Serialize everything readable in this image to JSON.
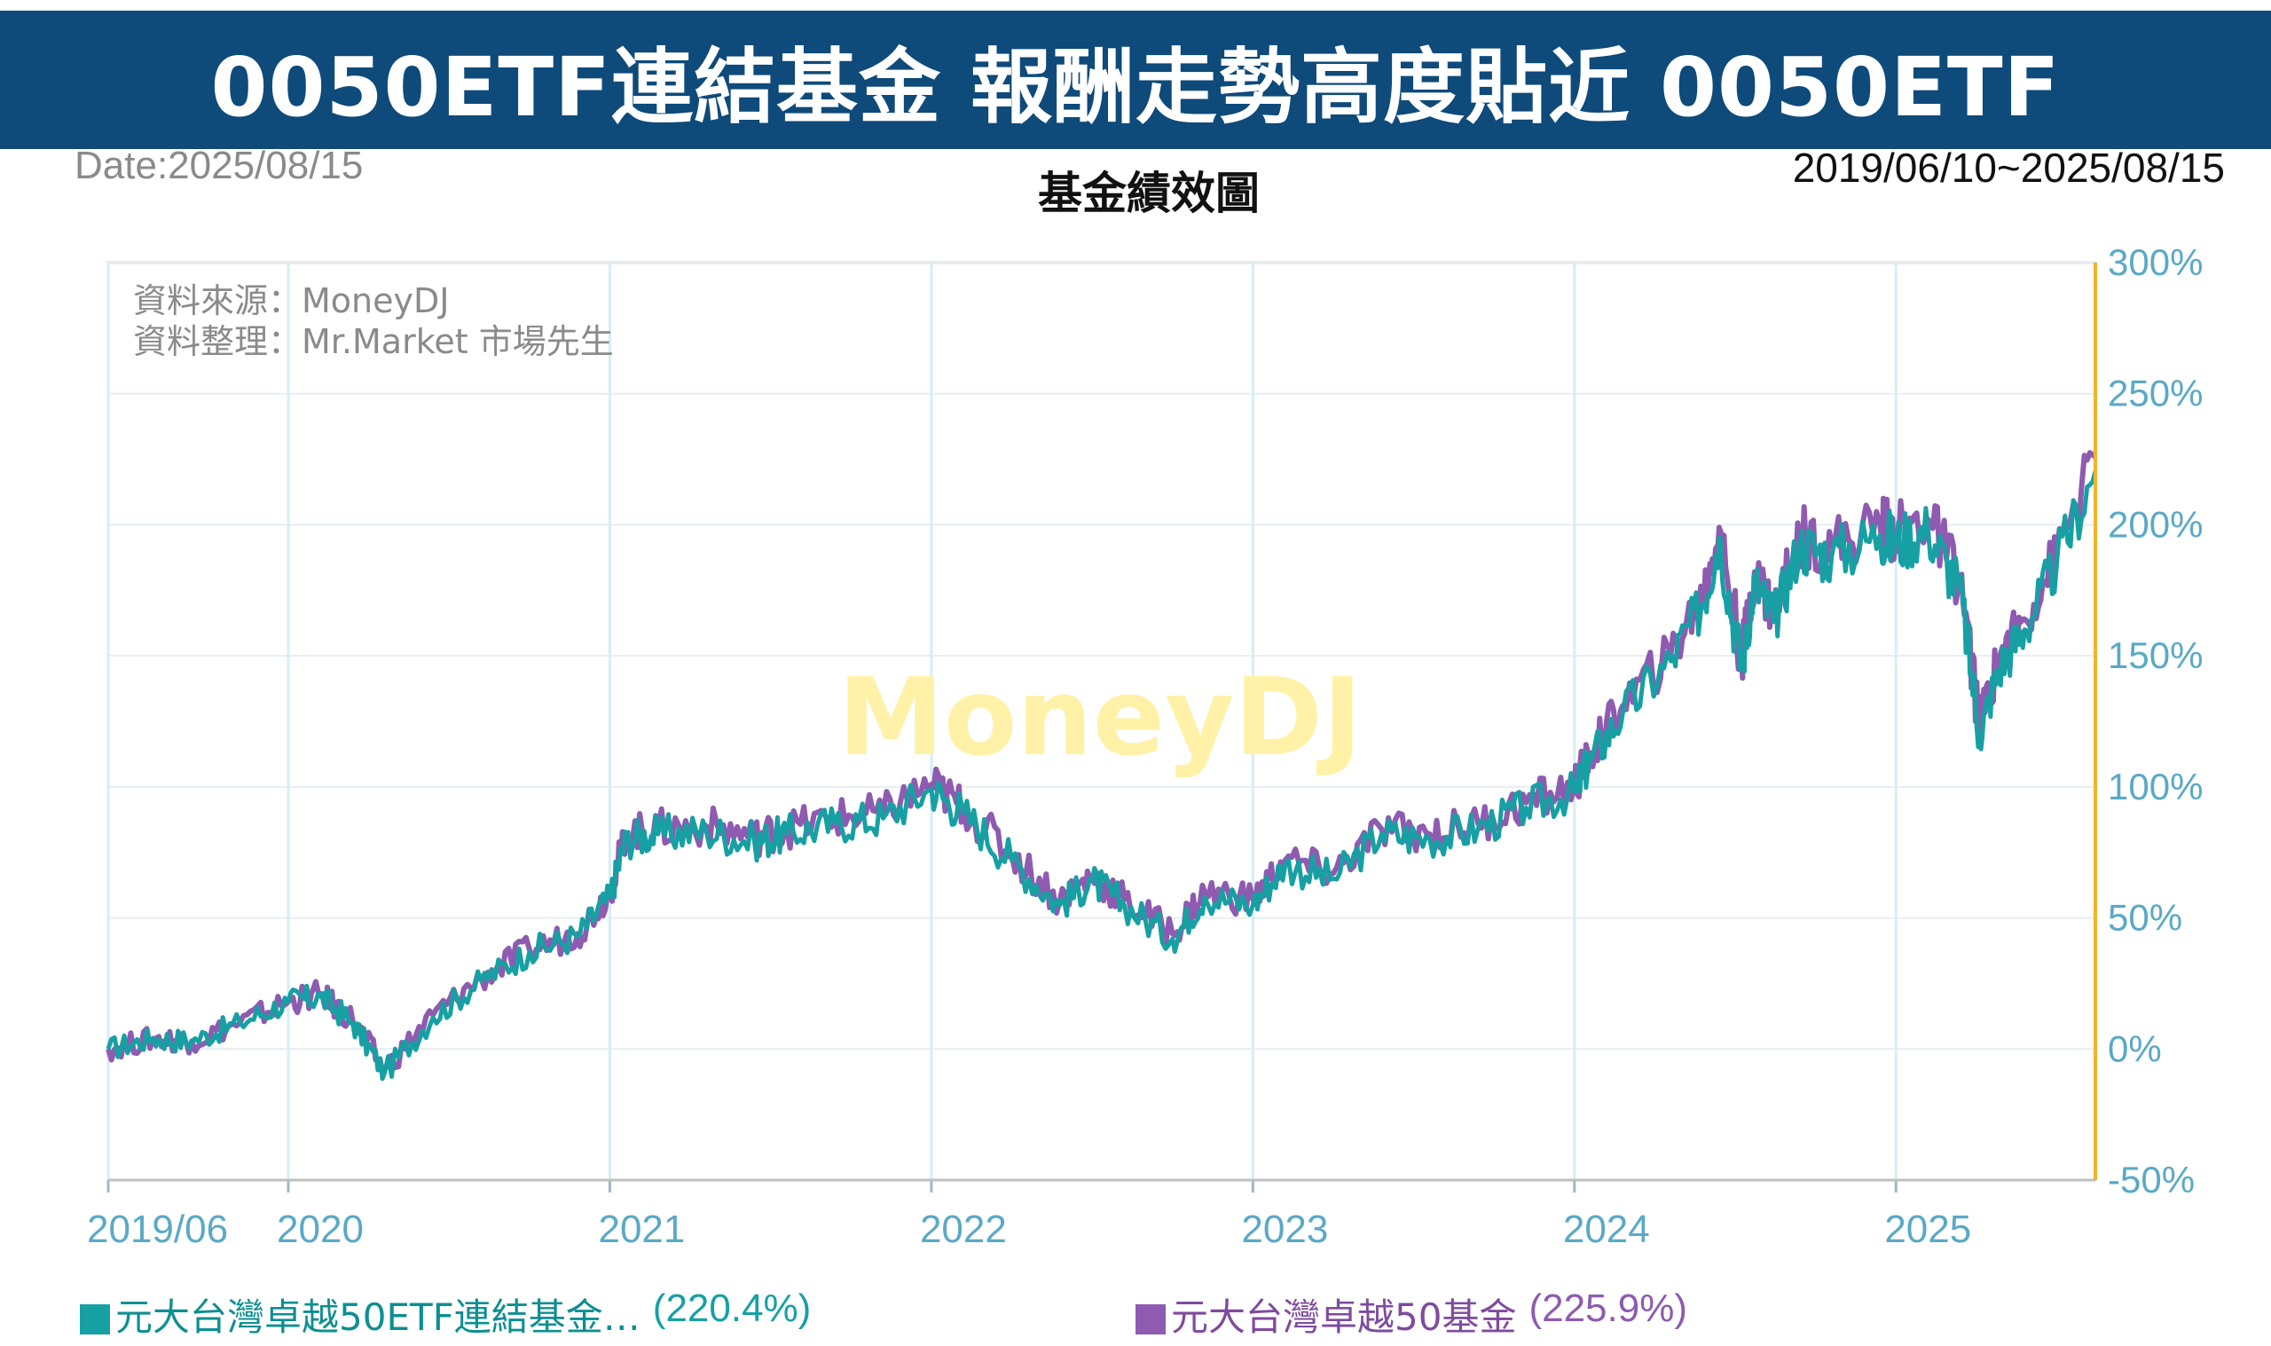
{
  "banner": {
    "title": "0050ETF連結基金 報酬走勢高度貼近 0050ETF"
  },
  "header": {
    "date_label": "Date:2025/08/15",
    "chart_title": "基金績效圖",
    "range_label": "2019/06/10~2025/08/15"
  },
  "annotations": {
    "source_line": "資料來源：MoneyDJ",
    "compiler_line": "資料整理：Mr.Market 市場先生",
    "watermark": "MoneyDJ"
  },
  "colors": {
    "banner": "#0e4a7a",
    "series1": "#17a0a3",
    "series2": "#8e5bb0",
    "axis_right": "#f0b429",
    "grid": "#dcecf2",
    "tick_label": "#5aa9c6"
  },
  "legend": [
    {
      "name": "元大台灣卓越50ETF連結基金…",
      "value": "(220.4%)",
      "swatch": "#17a0a3"
    },
    {
      "name": "元大台灣卓越50基金",
      "value": "(225.9%)",
      "swatch": "#8e5bb0"
    }
  ],
  "chart_data": {
    "type": "line",
    "title": "基金績效圖",
    "ylim": [
      -50,
      300
    ],
    "yticks": [
      300,
      250,
      200,
      150,
      100,
      50,
      0,
      -50
    ],
    "ytick_labels": [
      "300%",
      "250%",
      "200%",
      "150%",
      "100%",
      "50%",
      "0%",
      "-50%"
    ],
    "xlim": [
      2019.44,
      2025.62
    ],
    "xticks": [
      2019.44,
      2020.0,
      2021.0,
      2022.0,
      2023.0,
      2024.0,
      2025.0
    ],
    "xtick_labels": [
      "2019/06",
      "2020",
      "2021",
      "2022",
      "2023",
      "2024",
      "2025"
    ],
    "grid": true,
    "legend_position": "bottom",
    "series": [
      {
        "name": "元大台灣卓越50ETF連結基金…",
        "final_label": "(220.4%)",
        "x": [
          2019.44,
          2019.58,
          2019.7,
          2019.85,
          2020.0,
          2020.1,
          2020.2,
          2020.3,
          2020.45,
          2020.6,
          2020.75,
          2020.9,
          2021.0,
          2021.05,
          2021.15,
          2021.3,
          2021.45,
          2021.55,
          2021.7,
          2021.85,
          2022.0,
          2022.1,
          2022.25,
          2022.4,
          2022.5,
          2022.6,
          2022.75,
          2022.85,
          2023.0,
          2023.1,
          2023.25,
          2023.4,
          2023.55,
          2023.7,
          2023.85,
          2024.0,
          2024.05,
          2024.15,
          2024.3,
          2024.4,
          2024.45,
          2024.52,
          2024.56,
          2024.62,
          2024.7,
          2024.8,
          2024.95,
          2025.0,
          2025.1,
          2025.2,
          2025.26,
          2025.32,
          2025.4,
          2025.5,
          2025.62
        ],
        "y": [
          0,
          4,
          3,
          10,
          18,
          20,
          10,
          -9,
          12,
          26,
          37,
          43,
          58,
          80,
          82,
          83,
          79,
          82,
          86,
          88,
          99,
          90,
          72,
          55,
          64,
          55,
          42,
          58,
          55,
          70,
          65,
          82,
          80,
          84,
          92,
          98,
          110,
          128,
          148,
          170,
          195,
          145,
          178,
          163,
          192,
          188,
          196,
          193,
          198,
          175,
          120,
          145,
          160,
          185,
          220.4
        ]
      },
      {
        "name": "元大台灣卓越50基金",
        "final_label": "(225.9%)",
        "x": [
          2019.44,
          2019.58,
          2019.7,
          2019.85,
          2020.0,
          2020.1,
          2020.2,
          2020.3,
          2020.45,
          2020.6,
          2020.75,
          2020.9,
          2021.0,
          2021.05,
          2021.15,
          2021.3,
          2021.45,
          2021.55,
          2021.7,
          2021.85,
          2022.0,
          2022.1,
          2022.25,
          2022.4,
          2022.5,
          2022.6,
          2022.75,
          2022.85,
          2023.0,
          2023.1,
          2023.25,
          2023.4,
          2023.55,
          2023.7,
          2023.85,
          2024.0,
          2024.05,
          2024.15,
          2024.3,
          2024.4,
          2024.45,
          2024.52,
          2024.56,
          2024.62,
          2024.7,
          2024.8,
          2024.95,
          2025.0,
          2025.1,
          2025.2,
          2025.26,
          2025.32,
          2025.4,
          2025.5,
          2025.62
        ],
        "y": [
          0,
          4,
          3,
          10,
          18,
          21,
          11,
          -8,
          13,
          27,
          38,
          44,
          60,
          82,
          84,
          85,
          81,
          84,
          88,
          90,
          101,
          92,
          74,
          57,
          66,
          57,
          44,
          60,
          57,
          72,
          67,
          84,
          82,
          86,
          94,
          100,
          113,
          131,
          151,
          173,
          199,
          149,
          182,
          167,
          196,
          192,
          200,
          197,
          202,
          179,
          124,
          149,
          164,
          189,
          225.9
        ]
      }
    ]
  }
}
